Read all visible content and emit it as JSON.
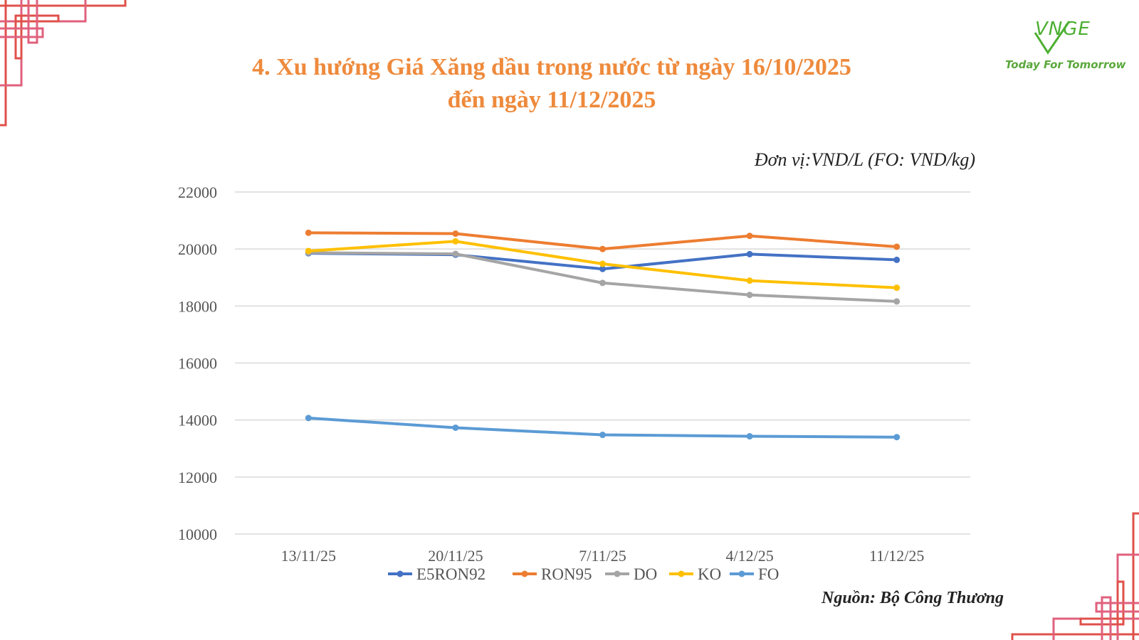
{
  "title": {
    "line1": "4. Xu hướng Giá Xăng dầu trong nước từ ngày 16/10/2025",
    "line2": "đến ngày 11/12/2025"
  },
  "unit": "Đơn vị:VND/L (FO: VND/kg)",
  "source": "Nguồn: Bộ Công Thương",
  "logo": {
    "name": "VNGE",
    "tagline": "Today For Tomorrow"
  },
  "colors": {
    "title": "#ee8a3c",
    "decor_pink": "#e0607e",
    "decor_red": "#e0504a",
    "logo_green": "#4caf32"
  },
  "chart_data": {
    "type": "line",
    "categories": [
      "13/11/25",
      "20/11/25",
      "7/11/25",
      "4/12/25",
      "11/12/25"
    ],
    "ylim": [
      10000,
      22000
    ],
    "yticks": [
      "22000",
      "20000",
      "18000",
      "16000",
      "14000",
      "12000",
      "10000"
    ],
    "grid": true,
    "legend_position": "bottom",
    "series": [
      {
        "name": "E5RON92",
        "color": "#4472c4",
        "values": [
          19850,
          19800,
          19300,
          19820,
          19620
        ]
      },
      {
        "name": "RON95",
        "color": "#ed7d31",
        "values": [
          20570,
          20540,
          20000,
          20460,
          20080
        ]
      },
      {
        "name": "DO",
        "color": "#a5a5a5",
        "values": [
          19870,
          19830,
          18810,
          18390,
          18160
        ]
      },
      {
        "name": "KO",
        "color": "#ffc000",
        "values": [
          19930,
          20270,
          19480,
          18890,
          18640
        ]
      },
      {
        "name": "FO",
        "color": "#5b9bd5",
        "values": [
          14070,
          13730,
          13480,
          13430,
          13400
        ]
      }
    ]
  }
}
